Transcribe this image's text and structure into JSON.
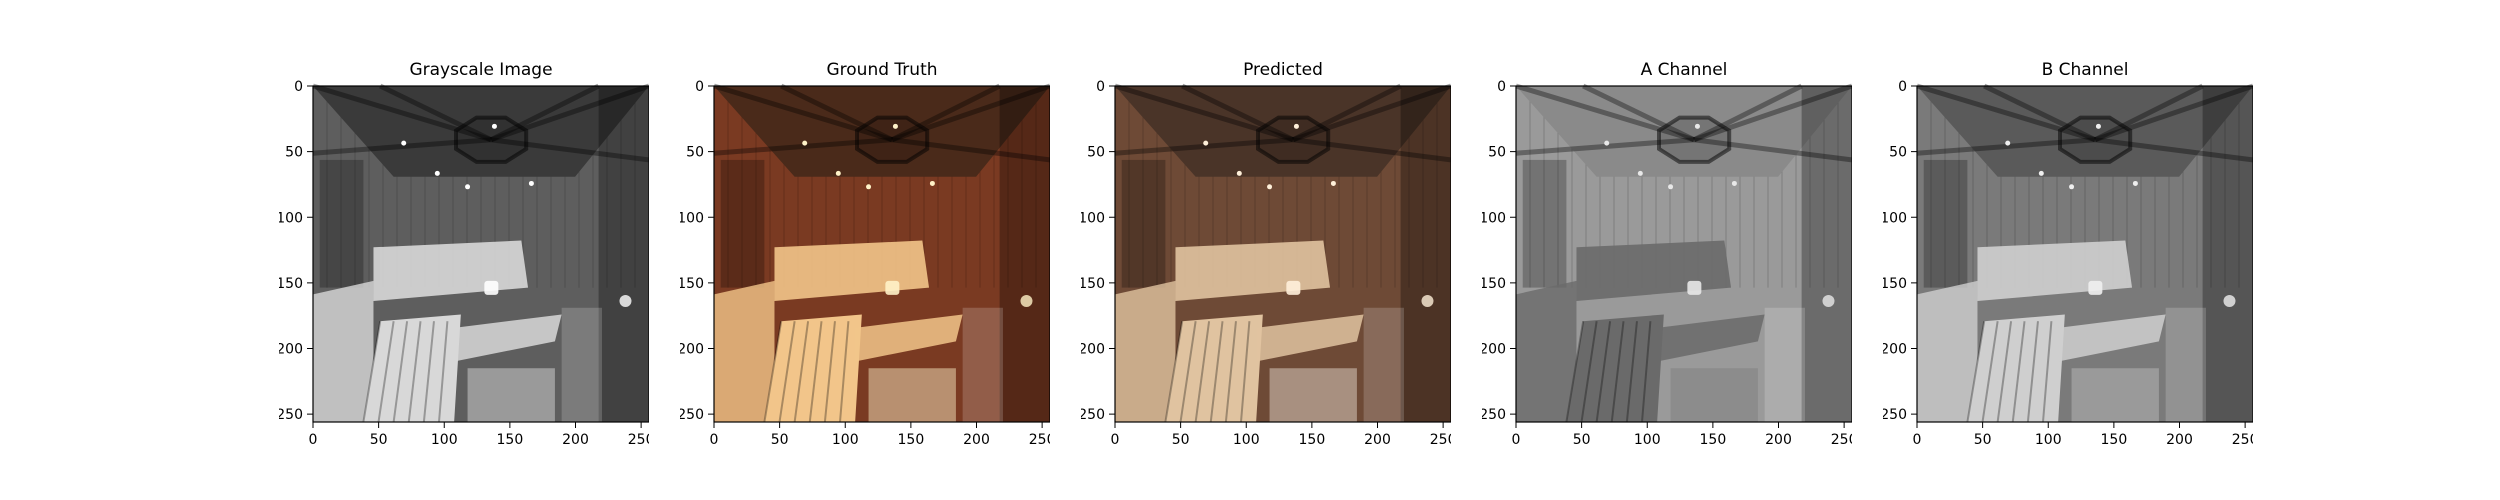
{
  "figure": {
    "panels": [
      {
        "title": "Grayscale Image",
        "image_kind": "grayscale"
      },
      {
        "title": "Ground Truth",
        "image_kind": "color"
      },
      {
        "title": "Predicted",
        "image_kind": "color-muted"
      },
      {
        "title": "A Channel",
        "image_kind": "a-channel"
      },
      {
        "title": "B Channel",
        "image_kind": "b-channel"
      }
    ],
    "x_ticks": [
      "0",
      "50",
      "100",
      "150",
      "200",
      "250"
    ],
    "y_ticks": [
      "0",
      "50",
      "100",
      "150",
      "200",
      "250"
    ],
    "axis_range": [
      0,
      256
    ]
  }
}
